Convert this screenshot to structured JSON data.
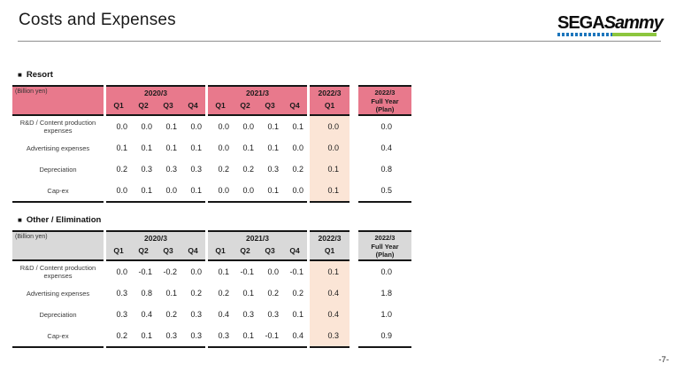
{
  "page": {
    "title": "Costs and Expenses",
    "page_number": "-7-",
    "section_bullet": "■",
    "logo": {
      "sega": "SEGA",
      "sammy": "Sammy",
      "blue": "#1C75BC",
      "green": "#8CC63E"
    }
  },
  "colors": {
    "resort_header": "#E8798C",
    "other_header": "#D9D9D9",
    "highlight": "#FBE5D6",
    "border": "#161616"
  },
  "tables": [
    {
      "id": "resort",
      "section_label": "Resort",
      "unit_label": "(Billion yen)",
      "header_bg": "#E8798C",
      "groups": [
        {
          "year": "2020/3",
          "quarters": [
            "Q1",
            "Q2",
            "Q3",
            "Q4"
          ]
        },
        {
          "year": "2021/3",
          "quarters": [
            "Q1",
            "Q2",
            "Q3",
            "Q4"
          ]
        }
      ],
      "current": {
        "year": "2022/3",
        "quarter": "Q1"
      },
      "full_year_header": [
        "2022/3",
        "Full Year",
        "(Plan)"
      ],
      "rows": [
        {
          "label": "R&D / Content production expenses",
          "group_values": [
            [
              "0.0",
              "0.0",
              "0.1",
              "0.0"
            ],
            [
              "0.0",
              "0.0",
              "0.1",
              "0.1"
            ]
          ],
          "current_value": "0.0",
          "full_year_value": "0.0"
        },
        {
          "label": "Advertising expenses",
          "group_values": [
            [
              "0.1",
              "0.1",
              "0.1",
              "0.1"
            ],
            [
              "0.0",
              "0.1",
              "0.1",
              "0.0"
            ]
          ],
          "current_value": "0.0",
          "full_year_value": "0.4"
        },
        {
          "label": "Depreciation",
          "group_values": [
            [
              "0.2",
              "0.3",
              "0.3",
              "0.3"
            ],
            [
              "0.2",
              "0.2",
              "0.3",
              "0.2"
            ]
          ],
          "current_value": "0.1",
          "full_year_value": "0.8"
        },
        {
          "label": "Cap-ex",
          "group_values": [
            [
              "0.0",
              "0.1",
              "0.0",
              "0.1"
            ],
            [
              "0.0",
              "0.0",
              "0.1",
              "0.0"
            ]
          ],
          "current_value": "0.1",
          "full_year_value": "0.5"
        }
      ]
    },
    {
      "id": "other-elimination",
      "section_label": "Other / Elimination",
      "unit_label": "(Billion yen)",
      "header_bg": "#D9D9D9",
      "groups": [
        {
          "year": "2020/3",
          "quarters": [
            "Q1",
            "Q2",
            "Q3",
            "Q4"
          ]
        },
        {
          "year": "2021/3",
          "quarters": [
            "Q1",
            "Q2",
            "Q3",
            "Q4"
          ]
        }
      ],
      "current": {
        "year": "2022/3",
        "quarter": "Q1"
      },
      "full_year_header": [
        "2022/3",
        "Full Year",
        "(Plan)"
      ],
      "rows": [
        {
          "label": "R&D / Content production expenses",
          "group_values": [
            [
              "0.0",
              "-0.1",
              "-0.2",
              "0.0"
            ],
            [
              "0.1",
              "-0.1",
              "0.0",
              "-0.1"
            ]
          ],
          "current_value": "0.1",
          "full_year_value": "0.0"
        },
        {
          "label": "Advertising expenses",
          "group_values": [
            [
              "0.3",
              "0.8",
              "0.1",
              "0.2"
            ],
            [
              "0.2",
              "0.1",
              "0.2",
              "0.2"
            ]
          ],
          "current_value": "0.4",
          "full_year_value": "1.8"
        },
        {
          "label": "Depreciation",
          "group_values": [
            [
              "0.3",
              "0.4",
              "0.2",
              "0.3"
            ],
            [
              "0.4",
              "0.3",
              "0.3",
              "0.1"
            ]
          ],
          "current_value": "0.4",
          "full_year_value": "1.0"
        },
        {
          "label": "Cap-ex",
          "group_values": [
            [
              "0.2",
              "0.1",
              "0.3",
              "0.3"
            ],
            [
              "0.3",
              "0.1",
              "-0.1",
              "0.4"
            ]
          ],
          "current_value": "0.3",
          "full_year_value": "0.9"
        }
      ]
    }
  ]
}
